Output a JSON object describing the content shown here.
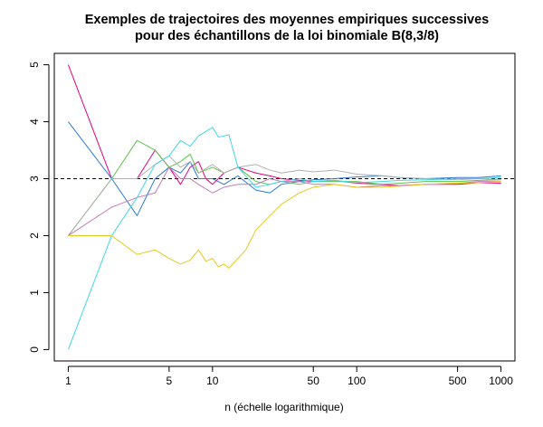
{
  "chart_data": {
    "type": "line",
    "title": [
      "Exemples de trajectoires des moyennes empiriques successives",
      "pour des échantillons de la loi binomiale B(8,3/8)"
    ],
    "xlabel": "n (échelle logarithmique)",
    "ylabel": "",
    "x_scale": "log",
    "xlim": [
      0.8,
      1250
    ],
    "ylim": [
      -0.2,
      5.2
    ],
    "x_ticks": [
      1,
      5,
      10,
      50,
      100,
      500,
      1000
    ],
    "x_tick_labels": [
      "1",
      "5",
      "10",
      "50",
      "100",
      "500",
      "1000"
    ],
    "y_ticks": [
      0,
      1,
      2,
      3,
      4,
      5
    ],
    "y_tick_labels": [
      "0",
      "1",
      "2",
      "3",
      "4",
      "5"
    ],
    "grid": false,
    "reference_line": {
      "y": 3,
      "style": "dashed",
      "color": "#000000"
    },
    "series": [
      {
        "color": "#e6007e",
        "points": [
          [
            1,
            5
          ],
          [
            2,
            3
          ],
          [
            3,
            3
          ],
          [
            4,
            3.5
          ],
          [
            5,
            3.2
          ],
          [
            6,
            2.9
          ],
          [
            7,
            3.2
          ],
          [
            8,
            3.3
          ],
          [
            9,
            3.0
          ],
          [
            10,
            2.9
          ],
          [
            12,
            3.1
          ],
          [
            15,
            3.2
          ],
          [
            20,
            3.1
          ],
          [
            25,
            3.05
          ],
          [
            30,
            3.0
          ],
          [
            40,
            2.97
          ],
          [
            50,
            2.95
          ],
          [
            70,
            2.97
          ],
          [
            100,
            2.92
          ],
          [
            150,
            2.9
          ],
          [
            200,
            2.88
          ],
          [
            300,
            2.9
          ],
          [
            500,
            2.9
          ],
          [
            700,
            2.93
          ],
          [
            1000,
            2.92
          ]
        ]
      },
      {
        "color": "#2b7bd4",
        "points": [
          [
            1,
            4
          ],
          [
            2,
            3
          ],
          [
            3,
            2.35
          ],
          [
            4,
            3
          ],
          [
            5,
            3.2
          ],
          [
            6,
            3.1
          ],
          [
            7,
            3.3
          ],
          [
            8,
            3.0
          ],
          [
            10,
            3.0
          ],
          [
            12,
            2.9
          ],
          [
            15,
            3.05
          ],
          [
            20,
            2.8
          ],
          [
            25,
            2.75
          ],
          [
            30,
            2.9
          ],
          [
            40,
            2.95
          ],
          [
            50,
            2.98
          ],
          [
            70,
            3.0
          ],
          [
            100,
            3.03
          ],
          [
            150,
            3.05
          ],
          [
            200,
            3.02
          ],
          [
            300,
            3.0
          ],
          [
            500,
            3.02
          ],
          [
            700,
            3.02
          ],
          [
            1000,
            3.05
          ]
        ]
      },
      {
        "color": "#5cc34a",
        "points": [
          [
            1,
            2
          ],
          [
            2,
            3
          ],
          [
            3,
            3.67
          ],
          [
            4,
            3.5
          ],
          [
            5,
            3.2
          ],
          [
            6,
            3.3
          ],
          [
            7,
            3.43
          ],
          [
            8,
            3.1
          ],
          [
            10,
            3.2
          ],
          [
            12,
            3.1
          ],
          [
            15,
            3.2
          ],
          [
            20,
            2.95
          ],
          [
            25,
            2.9
          ],
          [
            30,
            2.95
          ],
          [
            40,
            2.9
          ],
          [
            50,
            2.95
          ],
          [
            70,
            2.95
          ],
          [
            100,
            2.95
          ],
          [
            150,
            2.9
          ],
          [
            200,
            2.92
          ],
          [
            300,
            2.95
          ],
          [
            500,
            2.95
          ],
          [
            700,
            2.97
          ],
          [
            1000,
            2.98
          ]
        ]
      },
      {
        "color": "#b0b0b0",
        "points": [
          [
            1,
            2
          ],
          [
            2,
            3
          ],
          [
            3,
            3
          ],
          [
            4,
            3.25
          ],
          [
            5,
            3.4
          ],
          [
            6,
            3.2
          ],
          [
            7,
            3.3
          ],
          [
            8,
            3.1
          ],
          [
            10,
            3.25
          ],
          [
            12,
            3.1
          ],
          [
            15,
            3.2
          ],
          [
            20,
            3.25
          ],
          [
            25,
            3.15
          ],
          [
            30,
            3.1
          ],
          [
            40,
            3.15
          ],
          [
            50,
            3.12
          ],
          [
            70,
            3.15
          ],
          [
            100,
            3.08
          ],
          [
            150,
            3.05
          ],
          [
            200,
            3.02
          ],
          [
            300,
            3.0
          ],
          [
            500,
            2.98
          ],
          [
            700,
            3.0
          ],
          [
            1000,
            2.98
          ]
        ]
      },
      {
        "color": "#c07ab8",
        "points": [
          [
            1,
            2
          ],
          [
            2,
            2.5
          ],
          [
            3,
            2.67
          ],
          [
            4,
            2.75
          ],
          [
            5,
            3.2
          ],
          [
            6,
            3.0
          ],
          [
            7,
            3.0
          ],
          [
            8,
            2.9
          ],
          [
            10,
            2.75
          ],
          [
            12,
            2.85
          ],
          [
            15,
            2.9
          ],
          [
            20,
            2.9
          ],
          [
            25,
            3.0
          ],
          [
            30,
            2.95
          ],
          [
            40,
            2.95
          ],
          [
            50,
            2.9
          ],
          [
            70,
            2.9
          ],
          [
            100,
            2.85
          ],
          [
            150,
            2.88
          ],
          [
            200,
            2.88
          ],
          [
            300,
            2.9
          ],
          [
            500,
            2.92
          ],
          [
            700,
            2.95
          ],
          [
            1000,
            2.95
          ]
        ]
      },
      {
        "color": "#3fd7e8",
        "points": [
          [
            1,
            0
          ],
          [
            2,
            2
          ],
          [
            3,
            2.67
          ],
          [
            4,
            3.25
          ],
          [
            5,
            3.4
          ],
          [
            6,
            3.67
          ],
          [
            7,
            3.57
          ],
          [
            8,
            3.75
          ],
          [
            10,
            3.9
          ],
          [
            11,
            3.73
          ],
          [
            13,
            3.77
          ],
          [
            15,
            3.2
          ],
          [
            20,
            2.85
          ],
          [
            25,
            2.9
          ],
          [
            30,
            2.95
          ],
          [
            40,
            3.0
          ],
          [
            50,
            2.95
          ],
          [
            70,
            2.97
          ],
          [
            100,
            2.93
          ],
          [
            150,
            2.95
          ],
          [
            200,
            2.97
          ],
          [
            300,
            2.98
          ],
          [
            500,
            3.0
          ],
          [
            700,
            3.0
          ],
          [
            1000,
            3.02
          ]
        ]
      },
      {
        "color": "#e8c81e",
        "points": [
          [
            1,
            2
          ],
          [
            2,
            2
          ],
          [
            3,
            1.67
          ],
          [
            4,
            1.75
          ],
          [
            5,
            1.6
          ],
          [
            6,
            1.5
          ],
          [
            7,
            1.57
          ],
          [
            8,
            1.75
          ],
          [
            9,
            1.55
          ],
          [
            10,
            1.6
          ],
          [
            11,
            1.45
          ],
          [
            12,
            1.5
          ],
          [
            13,
            1.43
          ],
          [
            15,
            1.6
          ],
          [
            17,
            1.75
          ],
          [
            20,
            2.1
          ],
          [
            25,
            2.35
          ],
          [
            30,
            2.55
          ],
          [
            40,
            2.75
          ],
          [
            50,
            2.85
          ],
          [
            70,
            2.9
          ],
          [
            100,
            2.85
          ],
          [
            150,
            2.85
          ],
          [
            200,
            2.87
          ],
          [
            300,
            2.9
          ],
          [
            500,
            2.92
          ],
          [
            700,
            2.93
          ],
          [
            1000,
            2.95
          ]
        ]
      }
    ]
  }
}
